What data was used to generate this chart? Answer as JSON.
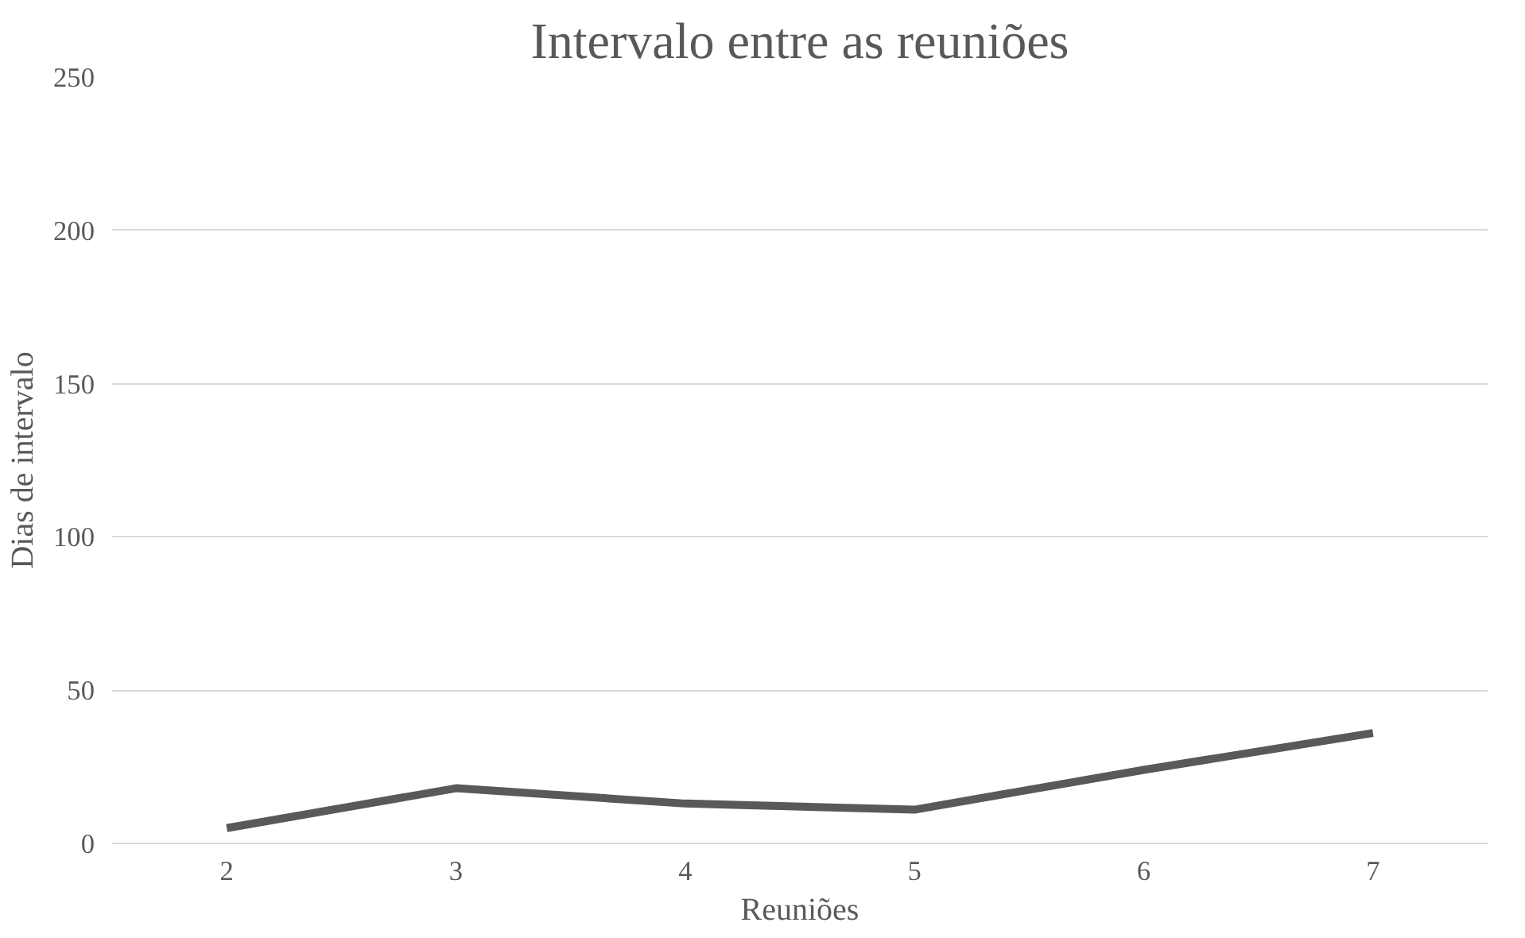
{
  "chart_data": {
    "type": "line",
    "title": "Intervalo entre as reuniões",
    "xlabel": "Reuniões",
    "ylabel": "Dias de intervalo",
    "categories": [
      "2",
      "3",
      "4",
      "5",
      "6",
      "7"
    ],
    "series": [
      {
        "color": "#595959",
        "values": [
          5,
          18,
          13,
          11,
          24,
          36
        ]
      }
    ],
    "ylim": [
      0,
      250
    ],
    "yticks": [
      0,
      50,
      100,
      150,
      200,
      250
    ],
    "grid": "y",
    "marker": "none",
    "line_style": "solid"
  }
}
